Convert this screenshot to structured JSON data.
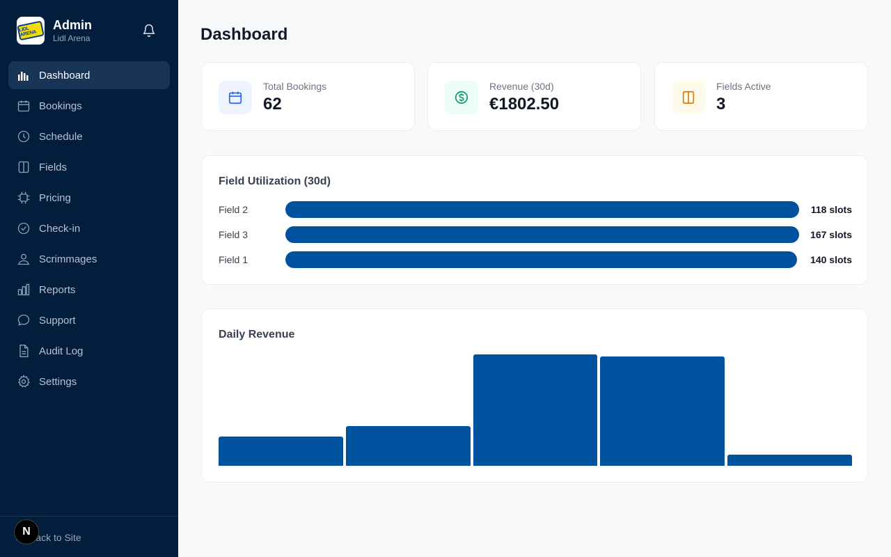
{
  "sidebar": {
    "brand_title": "Admin",
    "brand_subtitle": "Lidl Arena",
    "logo_text": "LIDL ARENA",
    "items": [
      {
        "label": "Dashboard",
        "icon": "bar-chart-icon",
        "active": true
      },
      {
        "label": "Bookings",
        "icon": "calendar-icon"
      },
      {
        "label": "Schedule",
        "icon": "clock-icon"
      },
      {
        "label": "Fields",
        "icon": "columns-icon"
      },
      {
        "label": "Pricing",
        "icon": "chip-icon"
      },
      {
        "label": "Check-in",
        "icon": "check-circle-icon"
      },
      {
        "label": "Scrimmages",
        "icon": "users-icon"
      },
      {
        "label": "Reports",
        "icon": "chart-icon"
      },
      {
        "label": "Support",
        "icon": "chat-icon"
      },
      {
        "label": "Audit Log",
        "icon": "document-icon"
      },
      {
        "label": "Settings",
        "icon": "gear-icon"
      }
    ],
    "back_label": "Back to Site",
    "badge_letter": "N"
  },
  "main": {
    "title": "Dashboard",
    "stats": [
      {
        "label": "Total Bookings",
        "value": "62",
        "icon": "calendar-icon",
        "color": "#2563eb",
        "bg": "#eef4ff"
      },
      {
        "label": "Revenue (30d)",
        "value": "€1802.50",
        "icon": "dollar-icon",
        "color": "#059669",
        "bg": "#ecfdf5"
      },
      {
        "label": "Fields Active",
        "value": "3",
        "icon": "columns-icon",
        "color": "#d97706",
        "bg": "#fffbeb"
      }
    ],
    "utilization": {
      "title": "Field Utilization (30d)",
      "rows": [
        {
          "name": "Field 2",
          "value_label": "118 slots"
        },
        {
          "name": "Field 3",
          "value_label": "167 slots"
        },
        {
          "name": "Field 1",
          "value_label": "140 slots"
        }
      ]
    },
    "revenue": {
      "title": "Daily Revenue"
    }
  },
  "chart_data": [
    {
      "type": "bar",
      "title": "Field Utilization (30d)",
      "orientation": "horizontal",
      "categories": [
        "Field 2",
        "Field 3",
        "Field 1"
      ],
      "values": [
        118,
        167,
        140
      ],
      "unit": "slots",
      "fill_fraction": [
        0.999,
        0.998,
        0.995
      ]
    },
    {
      "type": "bar",
      "title": "Daily Revenue",
      "values": [
        42,
        57,
        160,
        157,
        16
      ],
      "axis": "none",
      "color": "#00529f"
    }
  ]
}
